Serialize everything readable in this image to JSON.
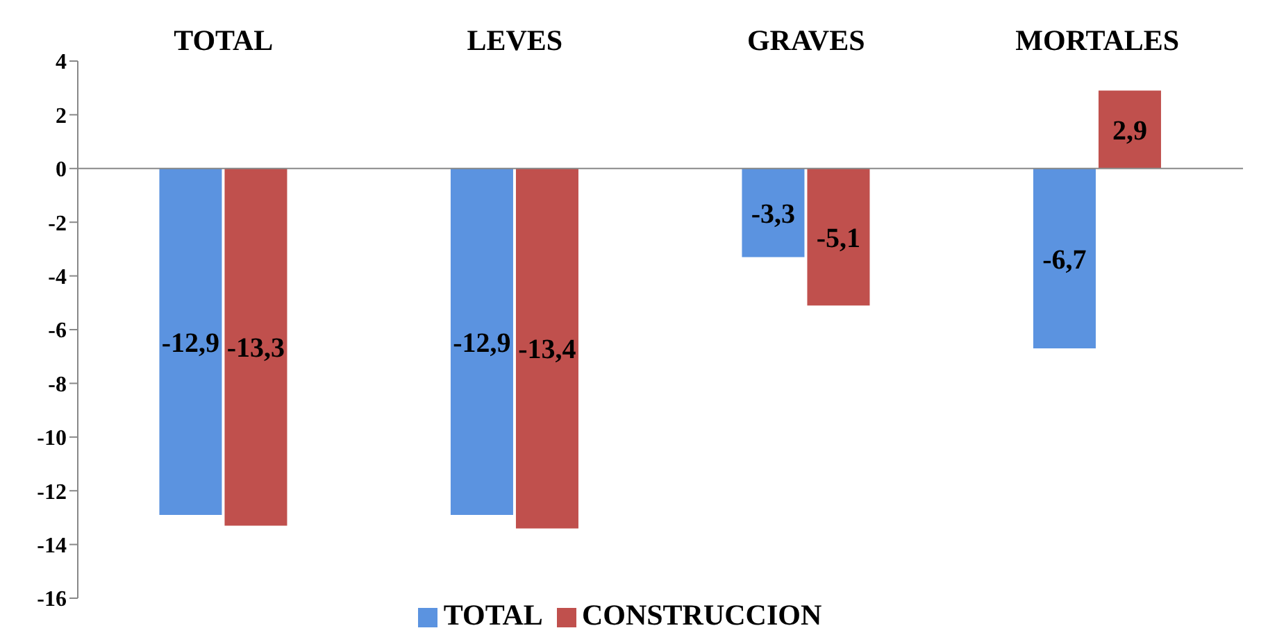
{
  "chart_data": {
    "type": "bar",
    "categories": [
      "TOTAL",
      "LEVES",
      "GRAVES",
      "MORTALES"
    ],
    "series": [
      {
        "name": "TOTAL",
        "color": "#5b93e0",
        "values": [
          -12.9,
          -12.9,
          -3.3,
          -6.7
        ],
        "value_labels": [
          "-12,9",
          "-12,9",
          "-3,3",
          "-6,7"
        ]
      },
      {
        "name": "CONSTRUCCION",
        "color": "#c0504d",
        "values": [
          -13.3,
          -13.4,
          -5.1,
          2.9
        ],
        "value_labels": [
          "-13,3",
          "-13,4",
          "-5,1",
          "2,9"
        ]
      }
    ],
    "ylim": [
      -16,
      4
    ],
    "yticks": [
      4,
      2,
      0,
      -2,
      -4,
      -6,
      -8,
      -10,
      -12,
      -14,
      -16
    ],
    "legend": "bottom"
  }
}
